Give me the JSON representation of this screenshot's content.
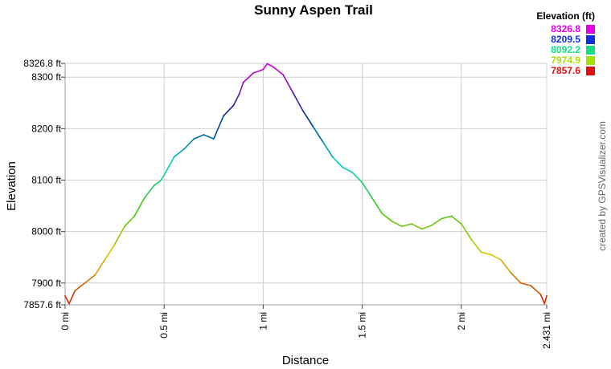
{
  "chart_data": {
    "type": "line",
    "title": "Sunny Aspen Trail",
    "xlabel": "Distance",
    "ylabel": "Elevation",
    "xlim": [
      0,
      2.431
    ],
    "ylim": [
      7857.6,
      8326.8
    ],
    "grid": true,
    "x_ticks": [
      {
        "value": 0,
        "label": "0 mi"
      },
      {
        "value": 0.5,
        "label": "0.5 mi"
      },
      {
        "value": 1,
        "label": "1 mi"
      },
      {
        "value": 1.5,
        "label": "1.5 mi"
      },
      {
        "value": 2,
        "label": "2 mi"
      },
      {
        "value": 2.431,
        "label": "2.431 mi"
      }
    ],
    "y_ticks": [
      {
        "value": 7857.6,
        "label": "7857.6 ft"
      },
      {
        "value": 7900,
        "label": "7900 ft"
      },
      {
        "value": 8000,
        "label": "8000 ft"
      },
      {
        "value": 8100,
        "label": "8100 ft"
      },
      {
        "value": 8200,
        "label": "8200 ft"
      },
      {
        "value": 8300,
        "label": "8300 ft"
      },
      {
        "value": 8326.8,
        "label": "8326.8 ft"
      }
    ],
    "legend": {
      "title": "Elevation (ft)",
      "placement": "top-right",
      "entries": [
        {
          "label": "8326.8",
          "color": "#e300e3"
        },
        {
          "label": "8209.5",
          "color": "#1030e0"
        },
        {
          "label": "8092.2",
          "color": "#10e080"
        },
        {
          "label": "7974.9",
          "color": "#a8e000"
        },
        {
          "label": "7857.6",
          "color": "#e01010"
        }
      ]
    },
    "series": [
      {
        "color_scale": "elevation",
        "x": [
          0,
          0.02,
          0.05,
          0.1,
          0.15,
          0.2,
          0.25,
          0.3,
          0.35,
          0.4,
          0.45,
          0.48,
          0.5,
          0.55,
          0.6,
          0.65,
          0.7,
          0.75,
          0.8,
          0.85,
          0.88,
          0.9,
          0.95,
          1.0,
          1.02,
          1.05,
          1.1,
          1.15,
          1.2,
          1.25,
          1.3,
          1.35,
          1.4,
          1.45,
          1.5,
          1.55,
          1.6,
          1.65,
          1.7,
          1.75,
          1.8,
          1.85,
          1.9,
          1.95,
          2.0,
          2.05,
          2.1,
          2.15,
          2.2,
          2.25,
          2.3,
          2.35,
          2.4,
          2.42,
          2.431
        ],
        "y": [
          7875,
          7860,
          7885,
          7900,
          7915,
          7945,
          7975,
          8010,
          8030,
          8065,
          8090,
          8098,
          8110,
          8145,
          8160,
          8180,
          8188,
          8180,
          8225,
          8245,
          8268,
          8290,
          8308,
          8315,
          8326,
          8320,
          8305,
          8270,
          8235,
          8205,
          8175,
          8145,
          8125,
          8115,
          8095,
          8065,
          8035,
          8020,
          8010,
          8015,
          8005,
          8012,
          8025,
          8030,
          8015,
          7985,
          7960,
          7955,
          7945,
          7920,
          7900,
          7895,
          7878,
          7860,
          7875
        ]
      }
    ]
  },
  "credit": "created by GPSVisualizer.com"
}
